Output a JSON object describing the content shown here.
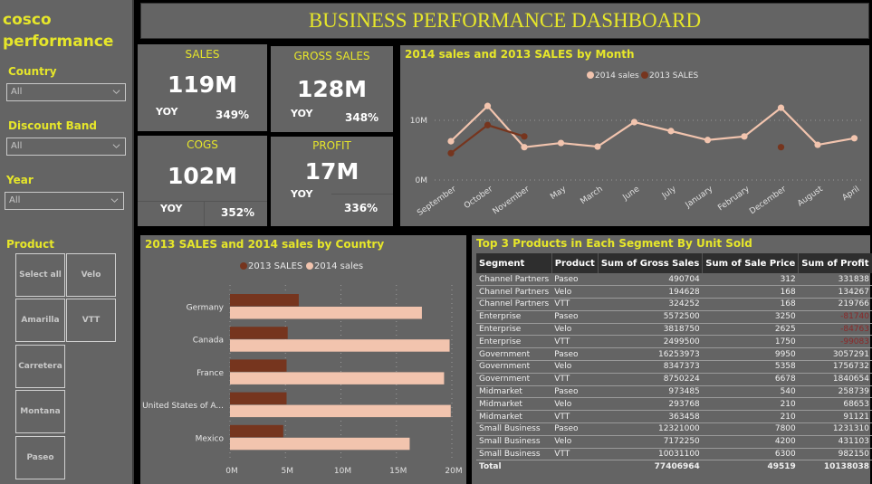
{
  "sidebar": {
    "brand_line1": "cosco",
    "brand_line2": "performance",
    "slicers": [
      {
        "label": "Country",
        "value": "All"
      },
      {
        "label": "Discount Band",
        "value": "All"
      },
      {
        "label": "Year",
        "value": "All"
      }
    ],
    "product_label": "Product",
    "product_tiles": [
      "Select all",
      "Velo",
      "Amarilla",
      "VTT",
      "Carretera",
      "Montana",
      "Paseo"
    ]
  },
  "header": {
    "title": "BUSINESS PERFORMANCE DASHBOARD"
  },
  "kpis": [
    {
      "title": "SALES",
      "value": "119M",
      "yoy_label": "YOY",
      "yoy": "349%"
    },
    {
      "title": "GROSS SALES",
      "value": "128M",
      "yoy_label": "YOY",
      "yoy": "348%"
    },
    {
      "title": "COGS",
      "value": "102M",
      "yoy_label": "YOY",
      "yoy": "352%"
    },
    {
      "title": "PROFIT",
      "value": "17M",
      "yoy_label": "YOY",
      "yoy": "336%"
    }
  ],
  "colors": {
    "accent": "#e6e62a",
    "series_2014": "#f2c4ae",
    "series_2013": "#76351e",
    "negative": "#8b2a2a"
  },
  "chart_data": [
    {
      "type": "line",
      "title": "2014 sales and 2013 SALES by Month",
      "legend": [
        "2014 sales",
        "2013 SALES"
      ],
      "legend_position": "top-center",
      "categories": [
        "September",
        "October",
        "November",
        "May",
        "March",
        "June",
        "July",
        "January",
        "February",
        "December",
        "August",
        "April"
      ],
      "yticks": [
        "0M",
        "10M"
      ],
      "ylim": [
        0,
        14
      ],
      "grid": true,
      "series": [
        {
          "name": "2014 sales",
          "values": [
            6.5,
            12.4,
            5.5,
            6.2,
            5.6,
            9.7,
            8.2,
            6.7,
            7.3,
            12.1,
            5.9,
            7.0
          ]
        },
        {
          "name": "2013 SALES",
          "values": [
            4.5,
            9.2,
            7.3,
            null,
            null,
            null,
            null,
            null,
            null,
            5.5,
            null,
            null
          ]
        }
      ]
    },
    {
      "type": "bar",
      "orientation": "horizontal",
      "title": "2013 SALES and 2014 sales by Country",
      "legend": [
        "2013 SALES",
        "2014 sales"
      ],
      "legend_position": "top-center",
      "categories": [
        "Germany",
        "Canada",
        "France",
        "United States of A...",
        "Mexico"
      ],
      "xticks": [
        "0M",
        "5M",
        "10M",
        "15M",
        "20M"
      ],
      "xlim": [
        0,
        20
      ],
      "grid": true,
      "series": [
        {
          "name": "2013 SALES",
          "values": [
            6.2,
            5.2,
            5.1,
            5.1,
            4.8
          ]
        },
        {
          "name": "2014 sales",
          "values": [
            17.3,
            19.8,
            19.3,
            19.9,
            16.2
          ]
        }
      ]
    }
  ],
  "table": {
    "title": "Top 3 Products in Each Segment By Unit Sold",
    "columns": [
      "Segment",
      "Product",
      "Sum of Gross Sales",
      "Sum of Sale Price",
      "Sum of Profit"
    ],
    "rows": [
      [
        "Channel Partners",
        "Paseo",
        "490704",
        "312",
        "331838"
      ],
      [
        "Channel Partners",
        "Velo",
        "194628",
        "168",
        "134267"
      ],
      [
        "Channel Partners",
        "VTT",
        "324252",
        "168",
        "219766"
      ],
      [
        "Enterprise",
        "Paseo",
        "5572500",
        "3250",
        "-81740"
      ],
      [
        "Enterprise",
        "Velo",
        "3818750",
        "2625",
        "-84763"
      ],
      [
        "Enterprise",
        "VTT",
        "2499500",
        "1750",
        "-99083"
      ],
      [
        "Government",
        "Paseo",
        "16253973",
        "9950",
        "3057291"
      ],
      [
        "Government",
        "Velo",
        "8347373",
        "5358",
        "1756732"
      ],
      [
        "Government",
        "VTT",
        "8750224",
        "6678",
        "1840654"
      ],
      [
        "Midmarket",
        "Paseo",
        "973485",
        "540",
        "258739"
      ],
      [
        "Midmarket",
        "Velo",
        "293768",
        "210",
        "68653"
      ],
      [
        "Midmarket",
        "VTT",
        "363458",
        "210",
        "91121"
      ],
      [
        "Small Business",
        "Paseo",
        "12321000",
        "7800",
        "1231310"
      ],
      [
        "Small Business",
        "Velo",
        "7172250",
        "4200",
        "431103"
      ],
      [
        "Small Business",
        "VTT",
        "10031100",
        "6300",
        "982150"
      ]
    ],
    "total": [
      "Total",
      "",
      "77406964",
      "49519",
      "10138038"
    ]
  }
}
